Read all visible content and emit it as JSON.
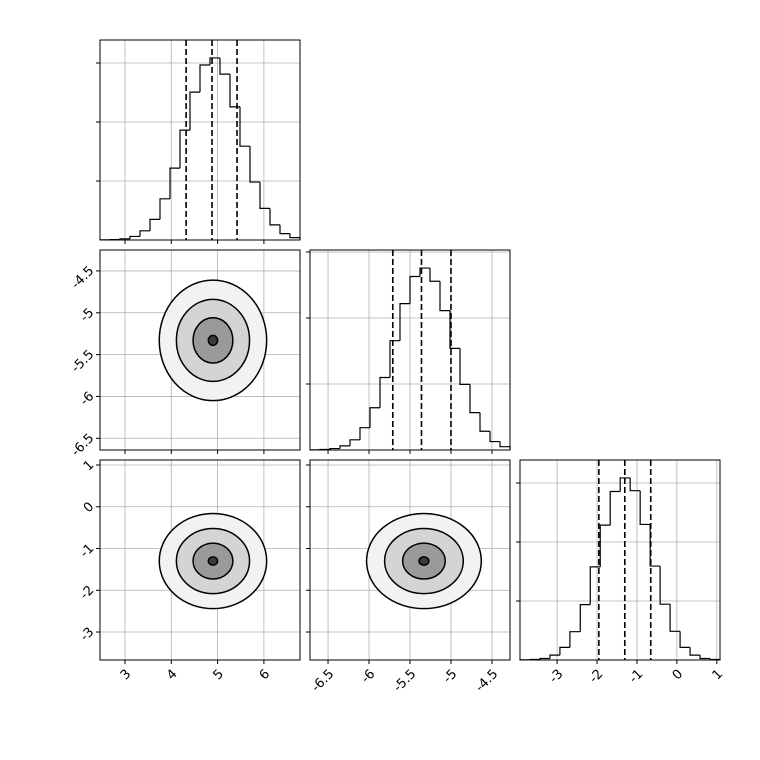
{
  "chart_data": [
    {
      "type": "histogram",
      "xlim": [
        2.46,
        6.78
      ],
      "ylim": [
        0,
        1695
      ],
      "xticks": [
        3,
        4,
        5,
        6
      ],
      "yticks": [
        500,
        1000,
        1500
      ],
      "show_xlabels": false,
      "show_ylabels": false,
      "grid": true,
      "color": "#000000",
      "bins": [
        2.46,
        2.676,
        2.892,
        3.108,
        3.324,
        3.54,
        3.756,
        3.972,
        4.188,
        4.404,
        4.62,
        4.836,
        5.052,
        5.268,
        5.484,
        5.7,
        5.916,
        6.132,
        6.348,
        6.564,
        6.78
      ],
      "values": [
        1,
        3,
        10,
        30,
        78,
        175,
        349,
        609,
        931,
        1253,
        1483,
        1543,
        1406,
        1128,
        795,
        491,
        268,
        128,
        54,
        20
      ],
      "quantiles": [
        4.32,
        4.88,
        5.42
      ]
    },
    {
      "type": "contour",
      "xlim": [
        2.46,
        6.78
      ],
      "ylim": [
        -6.64,
        -4.25
      ],
      "xticks": [
        3,
        4,
        5,
        6
      ],
      "yticks": [
        -6.5,
        -6.0,
        -5.5,
        -5.0,
        -4.5
      ],
      "show_xlabels": false,
      "show_ylabels": true,
      "grid": true,
      "color": "#000000",
      "center": [
        4.9,
        -5.33
      ],
      "contours": [
        {
          "rx": 1.16,
          "ry": 0.72
        },
        {
          "rx": 0.79,
          "ry": 0.49
        },
        {
          "rx": 0.43,
          "ry": 0.27
        },
        {
          "rx": 0.1,
          "ry": 0.06
        }
      ]
    },
    {
      "type": "histogram",
      "xlim": [
        -6.72,
        -4.28
      ],
      "ylim": [
        0,
        1515
      ],
      "xticks": [
        -6.5,
        -6.0,
        -5.5,
        -5.0,
        -4.5
      ],
      "yticks": [
        500,
        1000,
        1500
      ],
      "show_xlabels": false,
      "show_ylabels": false,
      "grid": true,
      "color": "#000000",
      "bins": [
        -6.72,
        -6.598,
        -6.476,
        -6.354,
        -6.232,
        -6.11,
        -5.988,
        -5.866,
        -5.744,
        -5.622,
        -5.5,
        -5.378,
        -5.256,
        -5.134,
        -5.012,
        -4.89,
        -4.768,
        -4.646,
        -4.524,
        -4.402,
        -4.28
      ],
      "values": [
        1,
        4,
        11,
        31,
        77,
        169,
        320,
        549,
        828,
        1109,
        1314,
        1378,
        1278,
        1056,
        770,
        497,
        283,
        142,
        64,
        25
      ],
      "quantiles": [
        -5.71,
        -5.36,
        -5.0
      ]
    },
    {
      "type": "contour",
      "xlim": [
        2.46,
        6.78
      ],
      "ylim": [
        -3.67,
        1.12
      ],
      "xticks": [
        3,
        4,
        5,
        6
      ],
      "yticks": [
        -3,
        -2,
        -1,
        0,
        1
      ],
      "show_xlabels": true,
      "show_ylabels": true,
      "grid": true,
      "color": "#000000",
      "center": [
        4.9,
        -1.3
      ],
      "contours": [
        {
          "rx": 1.16,
          "ry": 1.14
        },
        {
          "rx": 0.79,
          "ry": 0.78
        },
        {
          "rx": 0.43,
          "ry": 0.43
        },
        {
          "rx": 0.1,
          "ry": 0.1
        }
      ]
    },
    {
      "type": "contour",
      "xlim": [
        -6.72,
        -4.28
      ],
      "ylim": [
        -3.67,
        1.12
      ],
      "xticks": [
        -6.5,
        -6.0,
        -5.5,
        -5.0,
        -4.5
      ],
      "yticks": [
        -3,
        -2,
        -1,
        0,
        1
      ],
      "show_xlabels": true,
      "show_ylabels": false,
      "grid": true,
      "color": "#000000",
      "center": [
        -5.33,
        -1.3
      ],
      "contours": [
        {
          "rx": 0.7,
          "ry": 1.14
        },
        {
          "rx": 0.48,
          "ry": 0.78
        },
        {
          "rx": 0.26,
          "ry": 0.43
        },
        {
          "rx": 0.06,
          "ry": 0.1
        }
      ]
    },
    {
      "type": "histogram",
      "xlim": [
        -3.93,
        1.08
      ],
      "ylim": [
        0,
        1695
      ],
      "xticks": [
        -3,
        -2,
        -1,
        0,
        1
      ],
      "yticks": [
        500,
        1000,
        1500
      ],
      "show_xlabels": true,
      "show_ylabels": false,
      "grid": true,
      "color": "#000000",
      "bins": [
        -3.93,
        -3.68,
        -3.43,
        -3.18,
        -2.93,
        -2.68,
        -2.42,
        -2.17,
        -1.92,
        -1.67,
        -1.42,
        -1.17,
        -0.92,
        -0.67,
        -0.42,
        -0.17,
        0.08,
        0.33,
        0.58,
        0.83,
        1.08
      ],
      "values": [
        1,
        4,
        13,
        41,
        107,
        240,
        469,
        789,
        1143,
        1428,
        1543,
        1435,
        1149,
        796,
        473,
        243,
        107,
        41,
        13,
        4
      ],
      "quantiles": [
        -1.955,
        -1.305,
        -0.655
      ]
    }
  ]
}
